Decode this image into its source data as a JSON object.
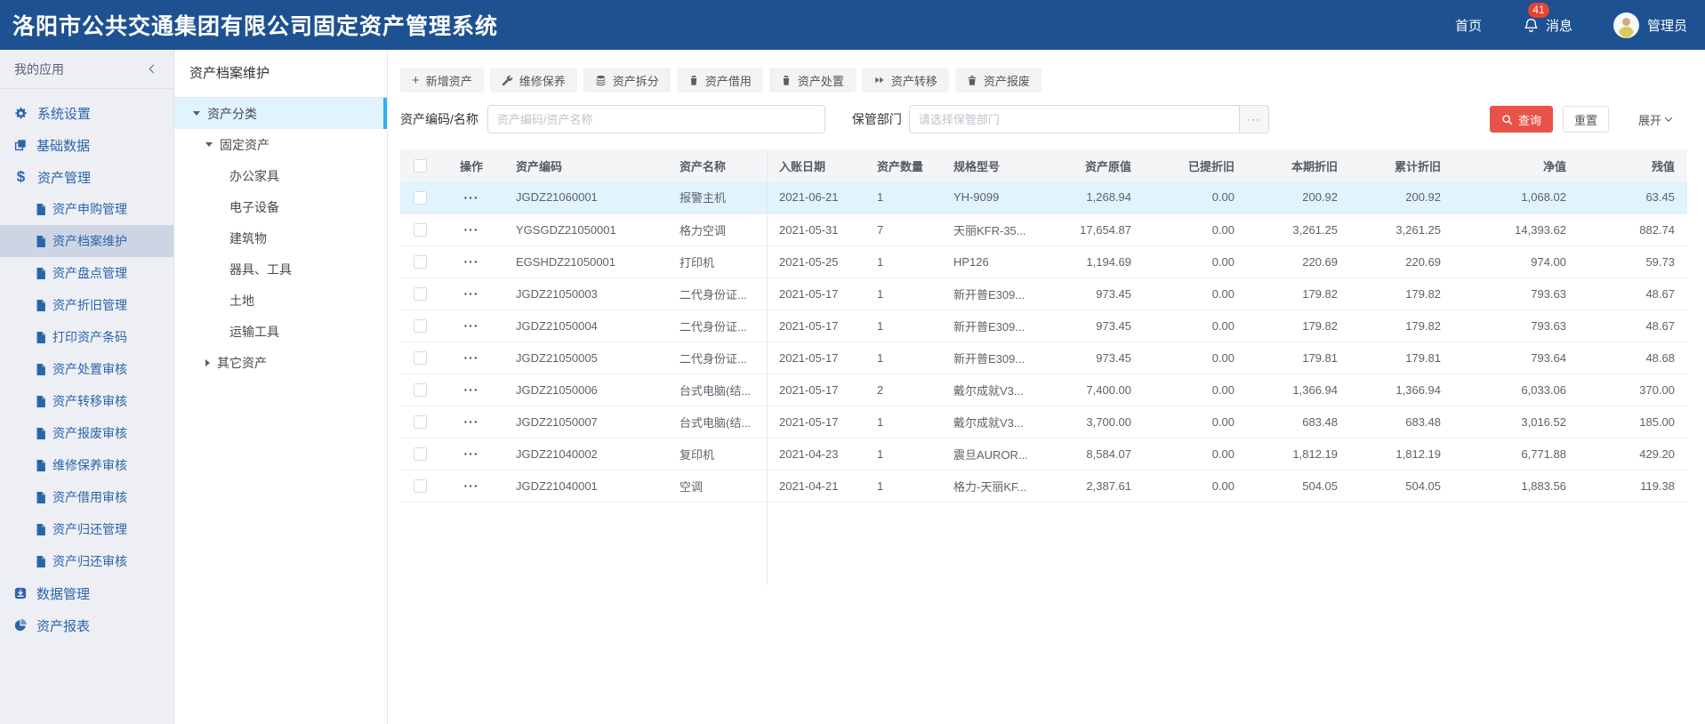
{
  "topbar": {
    "title": "洛阳市公共交通集团有限公司固定资产管理系统",
    "home_label": "首页",
    "messages_label": "消息",
    "messages_badge": "41",
    "user_label": "管理员"
  },
  "sidebar": {
    "header": "我的应用",
    "items": [
      {
        "label": "系统设置",
        "icon": "gear-icon",
        "level": 1
      },
      {
        "label": "基础数据",
        "icon": "copy-icon",
        "level": 1
      },
      {
        "label": "资产管理",
        "icon": "dollar-icon",
        "level": 1
      },
      {
        "label": "资产申购管理",
        "icon": "file-icon",
        "level": 2
      },
      {
        "label": "资产档案维护",
        "icon": "file-icon",
        "level": 2,
        "selected": true
      },
      {
        "label": "资产盘点管理",
        "icon": "file-icon",
        "level": 2
      },
      {
        "label": "资产折旧管理",
        "icon": "file-icon",
        "level": 2
      },
      {
        "label": "打印资产条码",
        "icon": "file-icon",
        "level": 2
      },
      {
        "label": "资产处置审核",
        "icon": "file-icon",
        "level": 2
      },
      {
        "label": "资产转移审核",
        "icon": "file-icon",
        "level": 2
      },
      {
        "label": "资产报废审核",
        "icon": "file-icon",
        "level": 2
      },
      {
        "label": "维修保养审核",
        "icon": "file-icon",
        "level": 2
      },
      {
        "label": "资产借用审核",
        "icon": "file-icon",
        "level": 2
      },
      {
        "label": "资产归还管理",
        "icon": "file-icon",
        "level": 2
      },
      {
        "label": "资产归还审核",
        "icon": "file-icon",
        "level": 2
      },
      {
        "label": "数据管理",
        "icon": "download-icon",
        "level": 1
      },
      {
        "label": "资产报表",
        "icon": "pie-icon",
        "level": 1
      }
    ]
  },
  "tree_panel": {
    "title": "资产档案维护",
    "nodes": [
      {
        "label": "资产分类",
        "depth": 1,
        "caret": "down",
        "selected": true
      },
      {
        "label": "固定资产",
        "depth": 2,
        "caret": "down"
      },
      {
        "label": "办公家具",
        "depth": 3
      },
      {
        "label": "电子设备",
        "depth": 3
      },
      {
        "label": "建筑物",
        "depth": 3
      },
      {
        "label": "器具、工具",
        "depth": 3
      },
      {
        "label": "土地",
        "depth": 3
      },
      {
        "label": "运输工具",
        "depth": 3
      },
      {
        "label": "其它资产",
        "depth": 2,
        "caret": "right"
      }
    ]
  },
  "toolbar": {
    "buttons": [
      {
        "label": "新增资产",
        "icon": "plus-icon"
      },
      {
        "label": "维修保养",
        "icon": "wrench-icon"
      },
      {
        "label": "资产拆分",
        "icon": "split-icon"
      },
      {
        "label": "资产借用",
        "icon": "borrow-icon"
      },
      {
        "label": "资产处置",
        "icon": "dispose-icon"
      },
      {
        "label": "资产转移",
        "icon": "transfer-icon"
      },
      {
        "label": "资产报废",
        "icon": "trash-icon"
      }
    ]
  },
  "filters": {
    "code_label": "资产编码/名称",
    "code_placeholder": "资产编码/资产名称",
    "dept_label": "保管部门",
    "dept_placeholder": "请选择保管部门",
    "more_button": "···",
    "search_button": "查询",
    "reset_button": "重置",
    "expand_label": "展开"
  },
  "table": {
    "columns": [
      "操作",
      "资产编码",
      "资产名称",
      "入账日期",
      "资产数量",
      "规格型号",
      "资产原值",
      "已提折旧",
      "本期折旧",
      "累计折旧",
      "净值",
      "残值"
    ],
    "row_action_label": "···",
    "selected_row_index": 0,
    "rows": [
      [
        "JGDZ21060001",
        "报警主机",
        "2021-06-21",
        "1",
        "YH-9099",
        "1,268.94",
        "0.00",
        "200.92",
        "200.92",
        "1,068.02",
        "63.45"
      ],
      [
        "YGSGDZ21050001",
        "格力空调",
        "2021-05-31",
        "7",
        "天丽KFR-35...",
        "17,654.87",
        "0.00",
        "3,261.25",
        "3,261.25",
        "14,393.62",
        "882.74"
      ],
      [
        "EGSHDZ21050001",
        "打印机",
        "2021-05-25",
        "1",
        "HP126",
        "1,194.69",
        "0.00",
        "220.69",
        "220.69",
        "974.00",
        "59.73"
      ],
      [
        "JGDZ21050003",
        "二代身份证...",
        "2021-05-17",
        "1",
        "新开普E309...",
        "973.45",
        "0.00",
        "179.82",
        "179.82",
        "793.63",
        "48.67"
      ],
      [
        "JGDZ21050004",
        "二代身份证...",
        "2021-05-17",
        "1",
        "新开普E309...",
        "973.45",
        "0.00",
        "179.82",
        "179.82",
        "793.63",
        "48.67"
      ],
      [
        "JGDZ21050005",
        "二代身份证...",
        "2021-05-17",
        "1",
        "新开普E309...",
        "973.45",
        "0.00",
        "179.81",
        "179.81",
        "793.64",
        "48.68"
      ],
      [
        "JGDZ21050006",
        "台式电脑(结...",
        "2021-05-17",
        "2",
        "戴尔成就V3...",
        "7,400.00",
        "0.00",
        "1,366.94",
        "1,366.94",
        "6,033.06",
        "370.00"
      ],
      [
        "JGDZ21050007",
        "台式电脑(结...",
        "2021-05-17",
        "1",
        "戴尔成就V3...",
        "3,700.00",
        "0.00",
        "683.48",
        "683.48",
        "3,016.52",
        "185.00"
      ],
      [
        "JGDZ21040002",
        "复印机",
        "2021-04-23",
        "1",
        "震旦AUROR...",
        "8,584.07",
        "0.00",
        "1,812.19",
        "1,812.19",
        "6,771.88",
        "429.20"
      ],
      [
        "JGDZ21040001",
        "空调",
        "2021-04-21",
        "1",
        "格力-天丽KF...",
        "2,387.61",
        "0.00",
        "504.05",
        "504.05",
        "1,883.56",
        "119.38"
      ]
    ]
  },
  "colors": {
    "topbar": "#1e5191",
    "badge": "#e8432e",
    "menuText": "#2b64ab",
    "sidebarBg": "#edeff4",
    "sidebarSel": "#cdd5e4",
    "treeSel": "#e1f3fd",
    "treeAccent": "#2fb2f2",
    "searchBtn": "#e85349",
    "rowSel": "#e1f3fd",
    "headBg": "#f4f5f7"
  }
}
